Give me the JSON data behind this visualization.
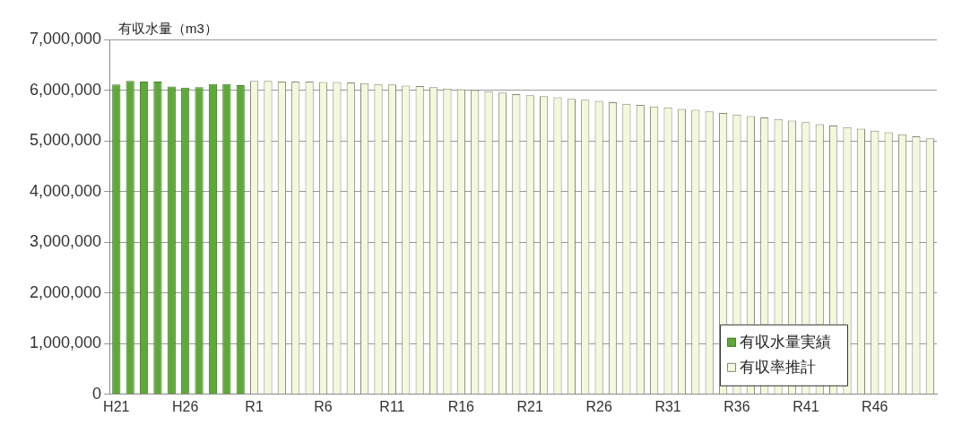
{
  "chart_data": {
    "type": "bar",
    "ylabel": "有収水量（m3）",
    "categories": [
      "H21",
      null,
      null,
      null,
      null,
      "H26",
      null,
      null,
      null,
      null,
      "R1",
      null,
      null,
      null,
      null,
      "R6",
      null,
      null,
      null,
      null,
      "R11",
      null,
      null,
      null,
      null,
      "R16",
      null,
      null,
      null,
      null,
      "R21",
      null,
      null,
      null,
      null,
      "R26",
      null,
      null,
      null,
      null,
      "R31",
      null,
      null,
      null,
      null,
      "R36",
      null,
      null,
      null,
      null,
      "R41",
      null,
      null,
      null,
      null,
      "R46",
      null,
      null,
      null,
      null
    ],
    "series": [
      {
        "name": "有収水量実績",
        "color": "#5fa83a",
        "values": [
          6110000,
          6180000,
          6170000,
          6170000,
          6070000,
          6050000,
          6060000,
          6120000,
          6120000,
          6100000,
          null,
          null,
          null,
          null,
          null,
          null,
          null,
          null,
          null,
          null,
          null,
          null,
          null,
          null,
          null,
          null,
          null,
          null,
          null,
          null,
          null,
          null,
          null,
          null,
          null,
          null,
          null,
          null,
          null,
          null,
          null,
          null,
          null,
          null,
          null,
          null,
          null,
          null,
          null,
          null,
          null,
          null,
          null,
          null,
          null,
          null,
          null,
          null,
          null,
          null
        ]
      },
      {
        "name": "有収率推計",
        "color": "#f4f8dc",
        "values": [
          null,
          null,
          null,
          null,
          null,
          null,
          null,
          null,
          null,
          null,
          6180000,
          6180000,
          6170000,
          6170000,
          6170000,
          6160000,
          6160000,
          6150000,
          6140000,
          6120000,
          6110000,
          6090000,
          6080000,
          6060000,
          6030000,
          6020000,
          6000000,
          5980000,
          5950000,
          5920000,
          5900000,
          5880000,
          5860000,
          5830000,
          5810000,
          5790000,
          5760000,
          5730000,
          5710000,
          5680000,
          5660000,
          5630000,
          5610000,
          5580000,
          5550000,
          5520000,
          5490000,
          5460000,
          5430000,
          5400000,
          5370000,
          5330000,
          5300000,
          5270000,
          5240000,
          5200000,
          5170000,
          5130000,
          5090000,
          5050000
        ]
      }
    ],
    "ylim": [
      0,
      7000000
    ],
    "yticks": [
      0,
      {
        "value": 1000000,
        "label": "1,000,000"
      },
      {
        "value": 2000000,
        "label": "2,000,000"
      },
      {
        "value": 3000000,
        "label": "3,000,000"
      },
      {
        "value": 4000000,
        "label": "4,000,000"
      },
      {
        "value": 5000000,
        "label": "5,000,000"
      },
      {
        "value": 6000000,
        "label": "6,000,000"
      },
      {
        "value": 7000000,
        "label": "7,000,000"
      }
    ],
    "grid": "y",
    "legend": "bottom right"
  }
}
